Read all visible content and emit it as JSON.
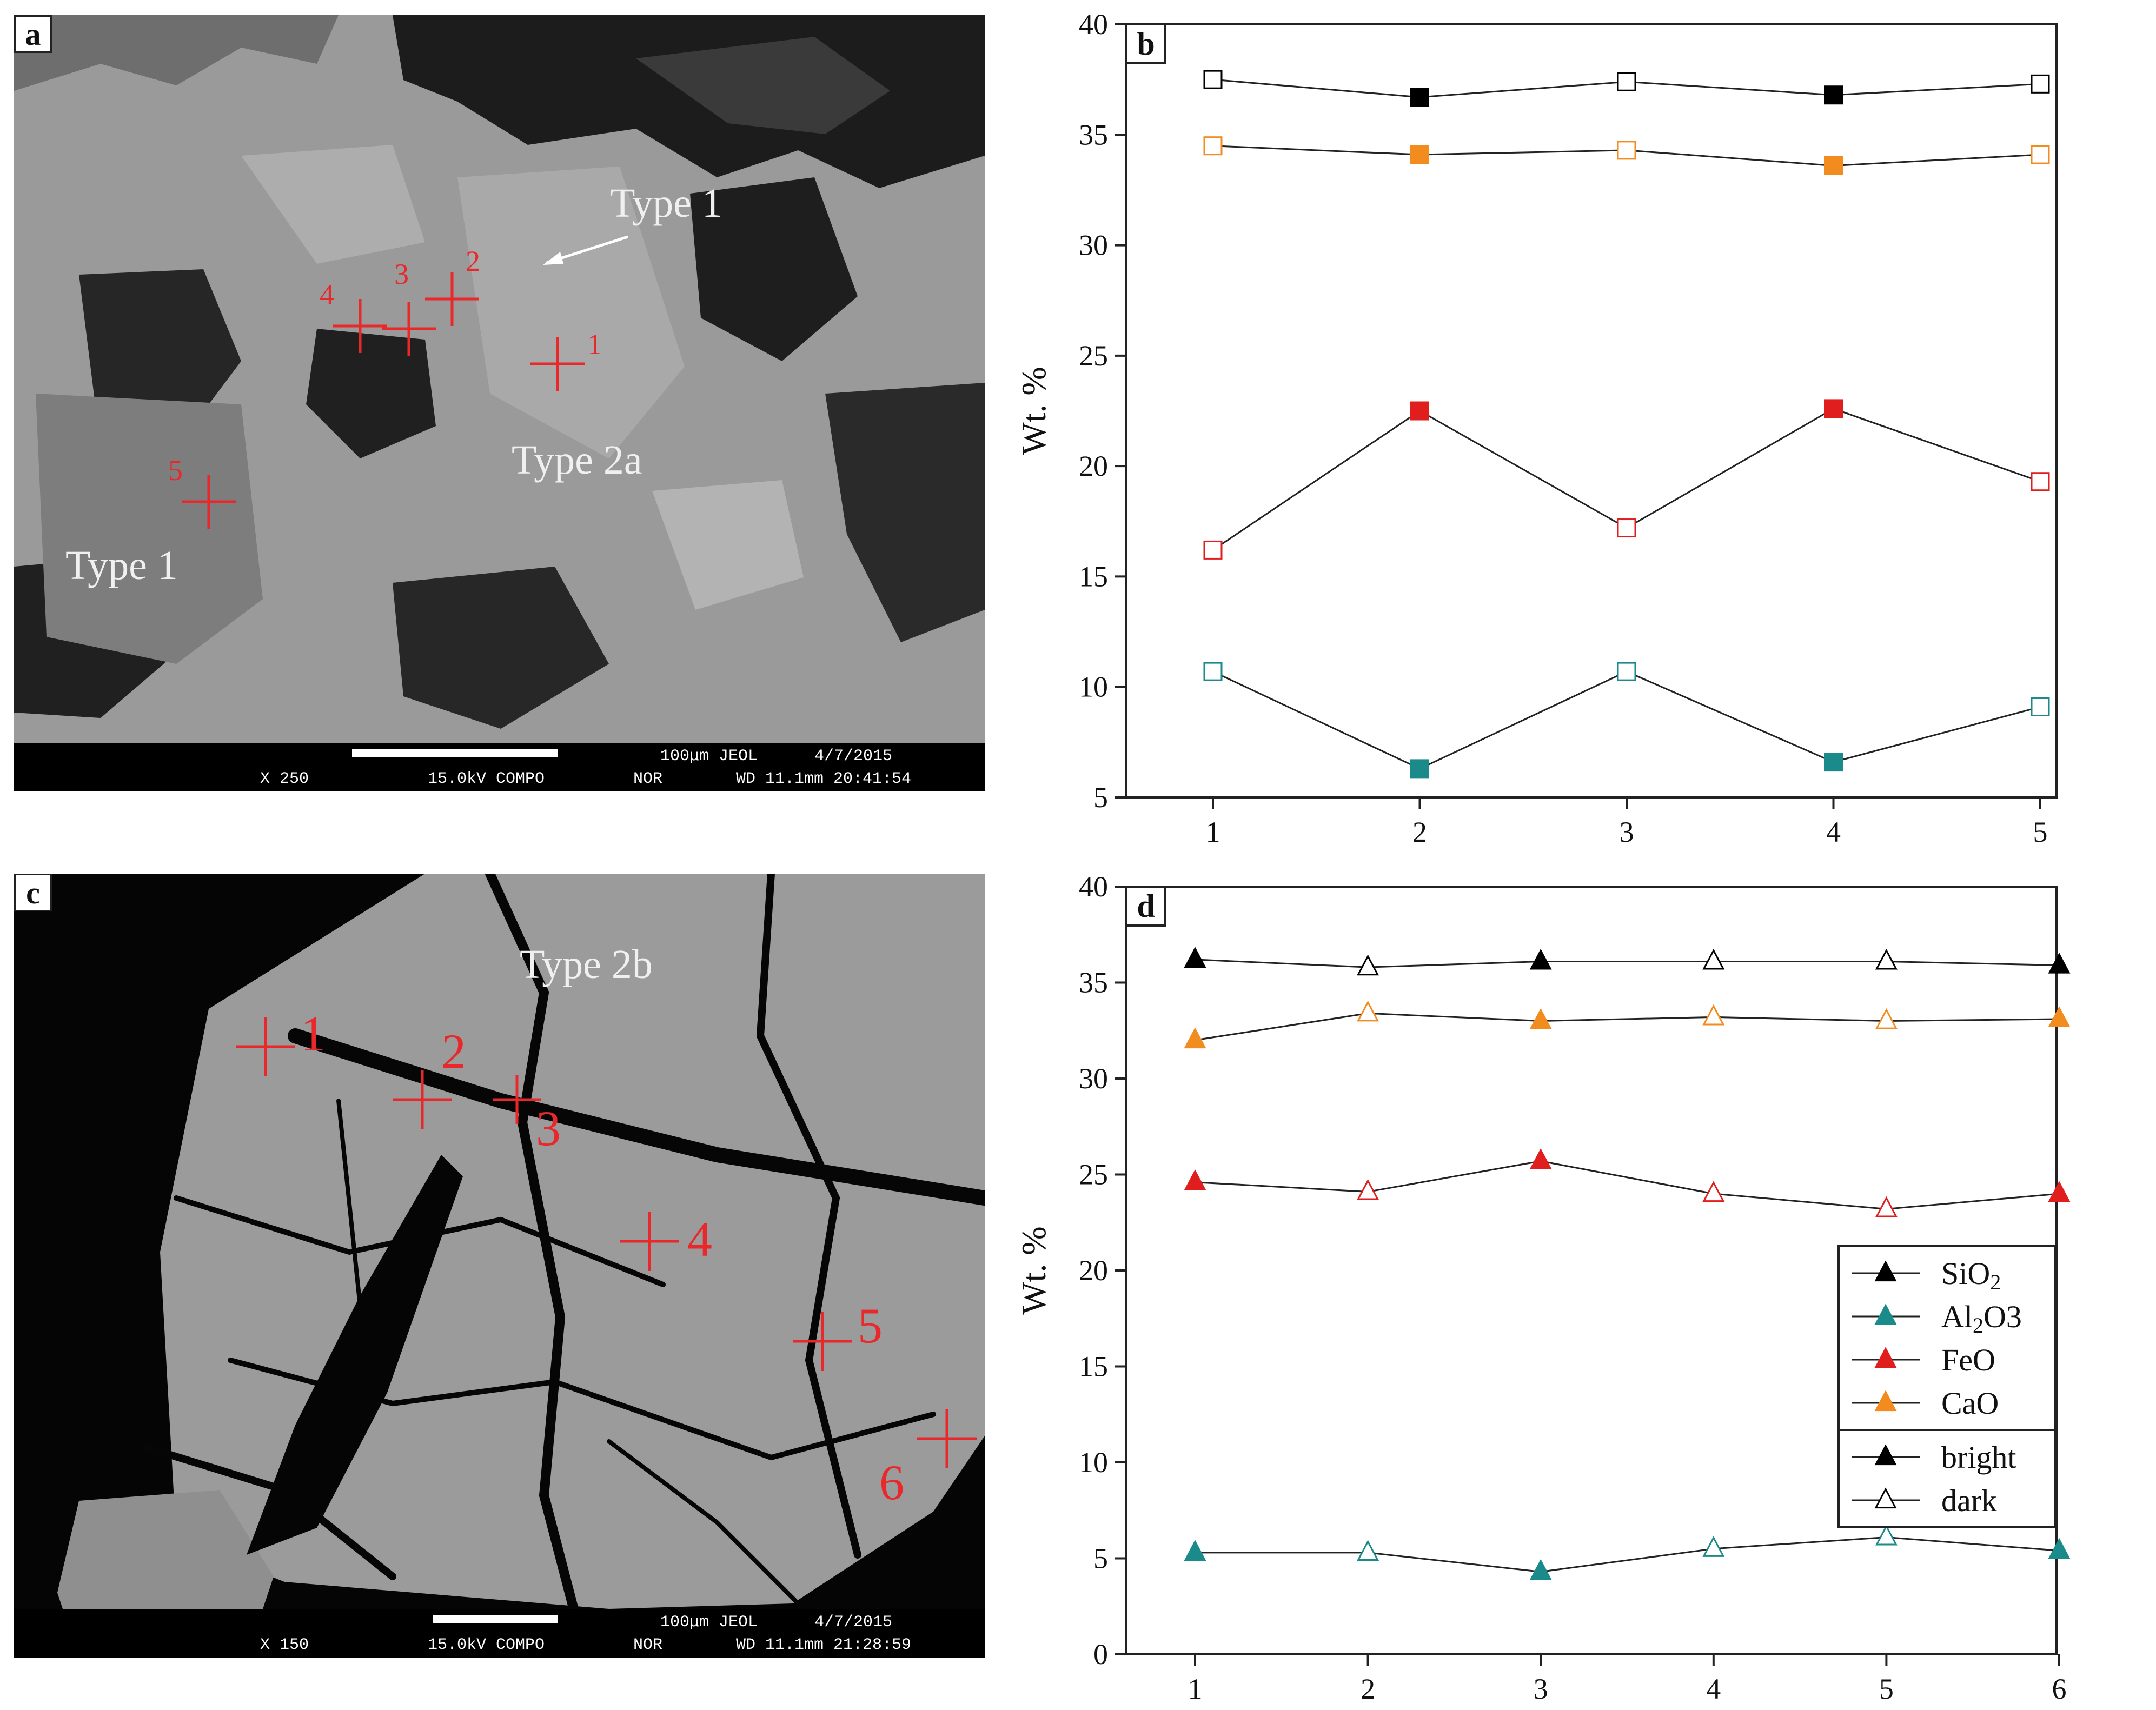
{
  "panel_a": {
    "letter": "a",
    "labels": {
      "type1_upper": "Type 1",
      "type2a": "Type 2a",
      "type1_lower": "Type 1"
    },
    "markers": [
      "1",
      "2",
      "3",
      "4",
      "5"
    ],
    "databar": {
      "mag": "X 250",
      "kv": "15.0kV COMPO",
      "mode": "NOR",
      "scale": "100μm JEOL",
      "date": "4/7/2015",
      "wd": "WD 11.1mm 20:41:54"
    }
  },
  "panel_c": {
    "letter": "c",
    "labels": {
      "type2b": "Type 2b"
    },
    "markers": [
      "1",
      "2",
      "3",
      "4",
      "5",
      "6"
    ],
    "databar": {
      "mag": "X 150",
      "kv": "15.0kV COMPO",
      "mode": "NOR",
      "scale": "100μm JEOL",
      "date": "4/7/2015",
      "wd": "WD 11.1mm 21:28:59"
    }
  },
  "chart_data": [
    {
      "panel": "b",
      "type": "line",
      "ylabel": "Wt. %",
      "x": [
        1,
        2,
        3,
        4,
        5
      ],
      "xticks": [
        "1",
        "2",
        "3",
        "4",
        "5"
      ],
      "ylim": [
        5,
        40
      ],
      "yticks": [
        "5",
        "10",
        "15",
        "20",
        "25",
        "30",
        "35",
        "40"
      ],
      "marker": "square",
      "series": [
        {
          "key": "sio2",
          "color": "#000000",
          "values": [
            37.5,
            36.7,
            37.4,
            36.8,
            37.3
          ],
          "bright": [
            false,
            true,
            false,
            true,
            false
          ]
        },
        {
          "key": "cao",
          "color": "#f28c1e",
          "values": [
            34.5,
            34.1,
            34.3,
            33.6,
            34.1
          ],
          "bright": [
            false,
            true,
            false,
            true,
            false
          ]
        },
        {
          "key": "feo",
          "color": "#e01e1e",
          "values": [
            16.2,
            22.5,
            17.2,
            22.6,
            19.3
          ],
          "bright": [
            false,
            true,
            false,
            true,
            false
          ]
        },
        {
          "key": "al2o3",
          "color": "#1a8a8a",
          "values": [
            10.7,
            6.3,
            10.7,
            6.6,
            9.1
          ],
          "bright": [
            false,
            true,
            false,
            true,
            false
          ]
        }
      ]
    },
    {
      "panel": "d",
      "type": "line",
      "ylabel": "Wt. %",
      "x": [
        1,
        2,
        3,
        4,
        5,
        6
      ],
      "xticks": [
        "1",
        "2",
        "3",
        "4",
        "5",
        "6"
      ],
      "ylim": [
        0,
        40
      ],
      "yticks": [
        "0",
        "5",
        "10",
        "15",
        "20",
        "25",
        "30",
        "35",
        "40"
      ],
      "marker": "triangle",
      "series": [
        {
          "key": "sio2",
          "color": "#000000",
          "values": [
            36.2,
            35.8,
            36.1,
            36.1,
            36.1,
            35.9
          ],
          "bright": [
            true,
            false,
            true,
            false,
            false,
            true
          ]
        },
        {
          "key": "cao",
          "color": "#f28c1e",
          "values": [
            32.0,
            33.4,
            33.0,
            33.2,
            33.0,
            33.1
          ],
          "bright": [
            true,
            false,
            true,
            false,
            false,
            true
          ]
        },
        {
          "key": "feo",
          "color": "#e01e1e",
          "values": [
            24.6,
            24.1,
            25.7,
            24.0,
            23.2,
            24.0
          ],
          "bright": [
            true,
            false,
            true,
            false,
            false,
            true
          ]
        },
        {
          "key": "al2o3",
          "color": "#1a8a8a",
          "values": [
            5.3,
            5.3,
            4.3,
            5.5,
            6.1,
            5.4
          ],
          "bright": [
            true,
            false,
            true,
            false,
            false,
            true
          ]
        }
      ],
      "legend": {
        "items": [
          {
            "label_main": "SiO",
            "label_sub": "2",
            "label_tail": "",
            "color": "#000000",
            "filled": true
          },
          {
            "label_main": "Al",
            "label_sub": "2",
            "label_tail": "O3",
            "color": "#1a8a8a",
            "filled": true
          },
          {
            "label_main": "FeO",
            "label_sub": "",
            "label_tail": "",
            "color": "#e01e1e",
            "filled": true
          },
          {
            "label_main": "CaO",
            "label_sub": "",
            "label_tail": "",
            "color": "#f28c1e",
            "filled": true
          },
          {
            "label_main": "bright",
            "label_sub": "",
            "label_tail": "",
            "color": "#000000",
            "filled": true
          },
          {
            "label_main": "dark",
            "label_sub": "",
            "label_tail": "",
            "color": "#000000",
            "filled": false
          }
        ]
      }
    }
  ]
}
